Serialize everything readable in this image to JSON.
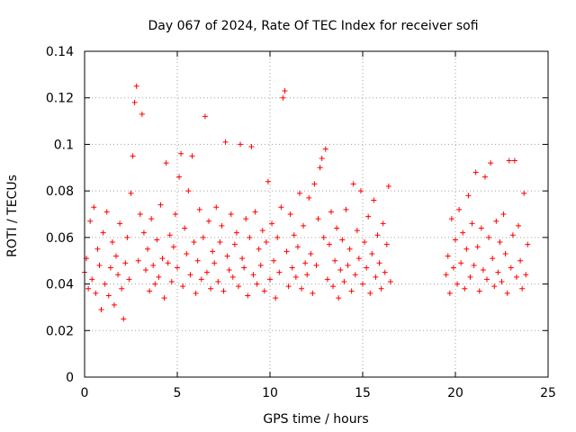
{
  "chart_data": {
    "type": "scatter",
    "title": "Day 067 of 2024, Rate Of TEC Index for receiver sofi",
    "xlabel": "GPS time / hours",
    "ylabel": "ROTI / TECUs",
    "xlim": [
      0,
      25
    ],
    "ylim": [
      0,
      0.14
    ],
    "x_ticks": [
      0,
      5,
      10,
      15,
      20,
      25
    ],
    "y_ticks": [
      0,
      0.02,
      0.04,
      0.06,
      0.08,
      0.1,
      0.12,
      0.14
    ],
    "x_tick_labels": [
      "0",
      "5",
      "10",
      "15",
      "20",
      "25"
    ],
    "y_tick_labels": [
      "0",
      "0.02",
      "0.04",
      "0.06",
      "0.08",
      "0.1",
      "0.12",
      "0.14"
    ],
    "grid": true,
    "marker": "+",
    "marker_color": "#ff0000",
    "series": [
      {
        "name": "ROTI",
        "points": [
          [
            0.0,
            0.045
          ],
          [
            0.1,
            0.051
          ],
          [
            0.2,
            0.038
          ],
          [
            0.3,
            0.067
          ],
          [
            0.4,
            0.042
          ],
          [
            0.5,
            0.073
          ],
          [
            0.6,
            0.036
          ],
          [
            0.7,
            0.055
          ],
          [
            0.8,
            0.048
          ],
          [
            0.9,
            0.029
          ],
          [
            1.0,
            0.062
          ],
          [
            1.1,
            0.04
          ],
          [
            1.2,
            0.071
          ],
          [
            1.3,
            0.035
          ],
          [
            1.4,
            0.047
          ],
          [
            1.5,
            0.058
          ],
          [
            1.6,
            0.031
          ],
          [
            1.7,
            0.052
          ],
          [
            1.8,
            0.044
          ],
          [
            1.9,
            0.066
          ],
          [
            2.0,
            0.038
          ],
          [
            2.1,
            0.025
          ],
          [
            2.2,
            0.049
          ],
          [
            2.3,
            0.06
          ],
          [
            2.4,
            0.042
          ],
          [
            2.5,
            0.079
          ],
          [
            2.6,
            0.095
          ],
          [
            2.7,
            0.118
          ],
          [
            2.8,
            0.125
          ],
          [
            2.9,
            0.05
          ],
          [
            3.0,
            0.07
          ],
          [
            3.1,
            0.113
          ],
          [
            3.2,
            0.062
          ],
          [
            3.3,
            0.046
          ],
          [
            3.4,
            0.055
          ],
          [
            3.5,
            0.037
          ],
          [
            3.6,
            0.068
          ],
          [
            3.7,
            0.048
          ],
          [
            3.8,
            0.04
          ],
          [
            3.9,
            0.059
          ],
          [
            4.0,
            0.043
          ],
          [
            4.1,
            0.074
          ],
          [
            4.2,
            0.051
          ],
          [
            4.3,
            0.034
          ],
          [
            4.4,
            0.092
          ],
          [
            4.5,
            0.049
          ],
          [
            4.6,
            0.061
          ],
          [
            4.7,
            0.041
          ],
          [
            4.8,
            0.056
          ],
          [
            4.9,
            0.07
          ],
          [
            5.0,
            0.047
          ],
          [
            5.1,
            0.086
          ],
          [
            5.2,
            0.096
          ],
          [
            5.3,
            0.039
          ],
          [
            5.4,
            0.064
          ],
          [
            5.5,
            0.053
          ],
          [
            5.6,
            0.08
          ],
          [
            5.7,
            0.044
          ],
          [
            5.8,
            0.095
          ],
          [
            5.9,
            0.058
          ],
          [
            6.0,
            0.036
          ],
          [
            6.1,
            0.05
          ],
          [
            6.2,
            0.072
          ],
          [
            6.3,
            0.042
          ],
          [
            6.4,
            0.06
          ],
          [
            6.5,
            0.112
          ],
          [
            6.6,
            0.045
          ],
          [
            6.7,
            0.067
          ],
          [
            6.8,
            0.038
          ],
          [
            6.9,
            0.054
          ],
          [
            7.0,
            0.049
          ],
          [
            7.1,
            0.073
          ],
          [
            7.2,
            0.041
          ],
          [
            7.3,
            0.058
          ],
          [
            7.4,
            0.065
          ],
          [
            7.5,
            0.037
          ],
          [
            7.6,
            0.101
          ],
          [
            7.7,
            0.052
          ],
          [
            7.8,
            0.046
          ],
          [
            7.9,
            0.07
          ],
          [
            8.0,
            0.043
          ],
          [
            8.1,
            0.057
          ],
          [
            8.2,
            0.062
          ],
          [
            8.3,
            0.039
          ],
          [
            8.4,
            0.1
          ],
          [
            8.5,
            0.051
          ],
          [
            8.6,
            0.047
          ],
          [
            8.7,
            0.068
          ],
          [
            8.8,
            0.035
          ],
          [
            8.9,
            0.06
          ],
          [
            9.0,
            0.099
          ],
          [
            9.1,
            0.044
          ],
          [
            9.2,
            0.071
          ],
          [
            9.3,
            0.04
          ],
          [
            9.4,
            0.055
          ],
          [
            9.5,
            0.048
          ],
          [
            9.6,
            0.063
          ],
          [
            9.7,
            0.037
          ],
          [
            9.8,
            0.058
          ],
          [
            9.9,
            0.084
          ],
          [
            10.0,
            0.042
          ],
          [
            10.1,
            0.066
          ],
          [
            10.2,
            0.05
          ],
          [
            10.3,
            0.034
          ],
          [
            10.4,
            0.06
          ],
          [
            10.5,
            0.045
          ],
          [
            10.6,
            0.073
          ],
          [
            10.7,
            0.12
          ],
          [
            10.8,
            0.123
          ],
          [
            10.9,
            0.054
          ],
          [
            11.0,
            0.039
          ],
          [
            11.1,
            0.07
          ],
          [
            11.2,
            0.047
          ],
          [
            11.3,
            0.061
          ],
          [
            11.4,
            0.043
          ],
          [
            11.5,
            0.056
          ],
          [
            11.6,
            0.079
          ],
          [
            11.7,
            0.038
          ],
          [
            11.8,
            0.065
          ],
          [
            11.9,
            0.049
          ],
          [
            12.0,
            0.044
          ],
          [
            12.1,
            0.077
          ],
          [
            12.2,
            0.053
          ],
          [
            12.3,
            0.036
          ],
          [
            12.4,
            0.083
          ],
          [
            12.5,
            0.048
          ],
          [
            12.6,
            0.068
          ],
          [
            12.7,
            0.09
          ],
          [
            12.8,
            0.094
          ],
          [
            12.9,
            0.06
          ],
          [
            13.0,
            0.098
          ],
          [
            13.1,
            0.042
          ],
          [
            13.2,
            0.057
          ],
          [
            13.3,
            0.071
          ],
          [
            13.4,
            0.039
          ],
          [
            13.5,
            0.05
          ],
          [
            13.6,
            0.064
          ],
          [
            13.7,
            0.034
          ],
          [
            13.8,
            0.046
          ],
          [
            13.9,
            0.059
          ],
          [
            14.0,
            0.041
          ],
          [
            14.1,
            0.072
          ],
          [
            14.2,
            0.048
          ],
          [
            14.3,
            0.055
          ],
          [
            14.4,
            0.037
          ],
          [
            14.5,
            0.083
          ],
          [
            14.6,
            0.044
          ],
          [
            14.7,
            0.063
          ],
          [
            14.8,
            0.051
          ],
          [
            14.9,
            0.08
          ],
          [
            15.0,
            0.04
          ],
          [
            15.1,
            0.058
          ],
          [
            15.2,
            0.047
          ],
          [
            15.3,
            0.069
          ],
          [
            15.4,
            0.036
          ],
          [
            15.5,
            0.053
          ],
          [
            15.6,
            0.076
          ],
          [
            15.7,
            0.043
          ],
          [
            15.8,
            0.061
          ],
          [
            15.9,
            0.049
          ],
          [
            16.0,
            0.038
          ],
          [
            16.1,
            0.066
          ],
          [
            16.2,
            0.045
          ],
          [
            16.3,
            0.057
          ],
          [
            16.4,
            0.082
          ],
          [
            16.5,
            0.041
          ],
          [
            19.5,
            0.044
          ],
          [
            19.6,
            0.052
          ],
          [
            19.7,
            0.036
          ],
          [
            19.8,
            0.068
          ],
          [
            19.9,
            0.047
          ],
          [
            20.0,
            0.059
          ],
          [
            20.1,
            0.04
          ],
          [
            20.2,
            0.072
          ],
          [
            20.3,
            0.049
          ],
          [
            20.4,
            0.062
          ],
          [
            20.5,
            0.038
          ],
          [
            20.6,
            0.055
          ],
          [
            20.7,
            0.078
          ],
          [
            20.8,
            0.043
          ],
          [
            20.9,
            0.066
          ],
          [
            21.0,
            0.048
          ],
          [
            21.1,
            0.088
          ],
          [
            21.2,
            0.056
          ],
          [
            21.3,
            0.037
          ],
          [
            21.4,
            0.064
          ],
          [
            21.5,
            0.046
          ],
          [
            21.6,
            0.086
          ],
          [
            21.7,
            0.042
          ],
          [
            21.8,
            0.06
          ],
          [
            21.9,
            0.092
          ],
          [
            22.0,
            0.051
          ],
          [
            22.1,
            0.039
          ],
          [
            22.2,
            0.067
          ],
          [
            22.3,
            0.045
          ],
          [
            22.4,
            0.058
          ],
          [
            22.5,
            0.041
          ],
          [
            22.6,
            0.07
          ],
          [
            22.7,
            0.053
          ],
          [
            22.8,
            0.036
          ],
          [
            22.9,
            0.093
          ],
          [
            23.0,
            0.047
          ],
          [
            23.1,
            0.061
          ],
          [
            23.2,
            0.093
          ],
          [
            23.3,
            0.043
          ],
          [
            23.4,
            0.065
          ],
          [
            23.5,
            0.05
          ],
          [
            23.6,
            0.038
          ],
          [
            23.7,
            0.079
          ],
          [
            23.8,
            0.044
          ],
          [
            23.9,
            0.057
          ]
        ]
      }
    ]
  }
}
